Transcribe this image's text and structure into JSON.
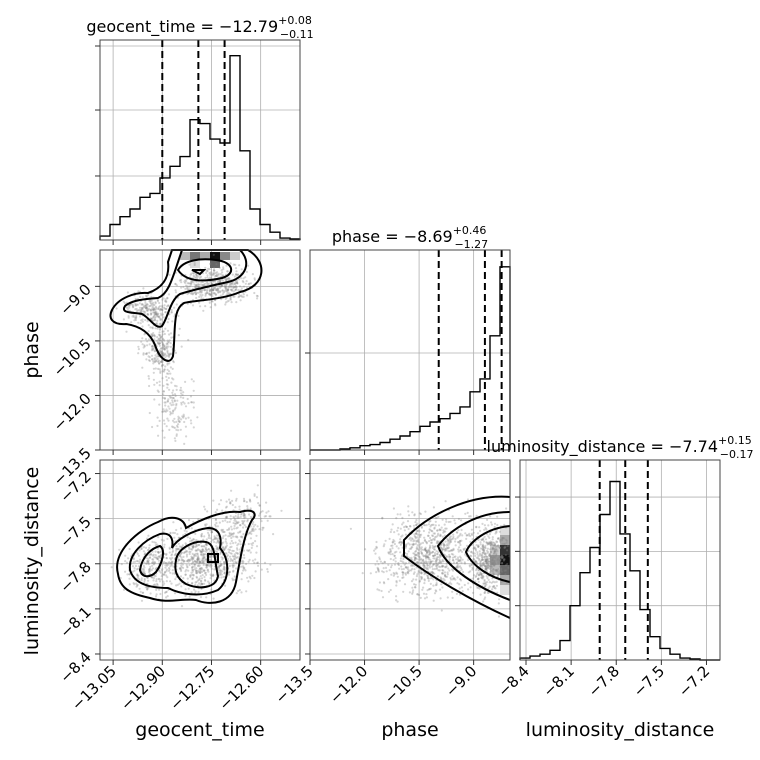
{
  "chart_data": {
    "type": "corner",
    "parameters": [
      {
        "name": "geocent_time",
        "median": "−12.79",
        "plus": "+0.08",
        "minus": "−0.11",
        "range": [
          -13.09,
          -12.48
        ],
        "ticks": [
          -13.05,
          -12.9,
          -12.75,
          -12.6
        ],
        "tick_labels": [
          "−13.05",
          "−12.90",
          "−12.75",
          "−12.60"
        ],
        "quantiles": [
          -12.9,
          -12.79,
          -12.71
        ]
      },
      {
        "name": "phase",
        "median": "−8.69",
        "plus": "+0.46",
        "minus": "−1.27",
        "range": [
          -13.5,
          -8.0
        ],
        "ticks": [
          -13.5,
          -12.0,
          -10.5,
          -9.0
        ],
        "tick_labels": [
          "−13.5",
          "−12.0",
          "−10.5",
          "−9.0"
        ],
        "quantiles": [
          -9.96,
          -8.69,
          -8.23
        ]
      },
      {
        "name": "luminosity_distance",
        "median": "−7.74",
        "plus": "+0.15",
        "minus": "−0.17",
        "range": [
          -8.44,
          -7.11
        ],
        "ticks": [
          -8.4,
          -8.1,
          -7.8,
          -7.5,
          -7.2
        ],
        "tick_labels": [
          "−8.4",
          "−8.1",
          "−7.8",
          "−7.5",
          "−7.2"
        ],
        "quantiles": [
          -7.91,
          -7.74,
          -7.59
        ]
      }
    ],
    "histograms": {
      "geocent_time": [
        0.02,
        0.08,
        0.12,
        0.16,
        0.22,
        0.24,
        0.32,
        0.38,
        0.43,
        0.62,
        0.6,
        0.52,
        0.5,
        0.95,
        0.46,
        0.16,
        0.08,
        0.04,
        0.01,
        0.005
      ],
      "phase": [
        0.0,
        0.0,
        0.0,
        0.005,
        0.01,
        0.02,
        0.025,
        0.035,
        0.05,
        0.065,
        0.085,
        0.11,
        0.13,
        0.145,
        0.17,
        0.2,
        0.27,
        0.33,
        0.53,
        0.85
      ],
      "luminosity_distance": [
        0.01,
        0.02,
        0.03,
        0.05,
        0.1,
        0.28,
        0.45,
        0.58,
        0.75,
        0.92,
        0.65,
        0.46,
        0.26,
        0.12,
        0.06,
        0.03,
        0.01,
        0.005,
        0.0,
        0.0
      ]
    },
    "grid": true
  }
}
